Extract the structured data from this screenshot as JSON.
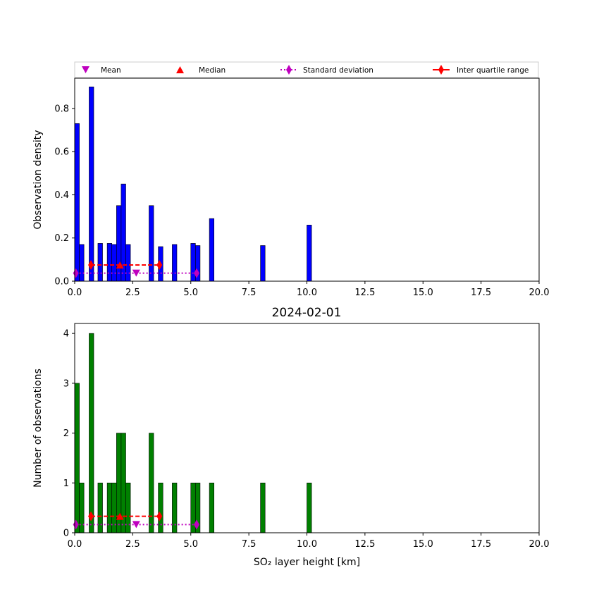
{
  "figure_title": "2024-02-01",
  "legend": {
    "mean": "Mean",
    "median": "Median",
    "std": "Standard deviation",
    "iqr": "Inter quartile range"
  },
  "colors": {
    "top_bar": "#0000ff",
    "bottom_bar": "#008000",
    "mean_marker": "#bf00bf",
    "median_marker": "#ff0000",
    "std_line": "#bf00bf",
    "iqr_line": "#ff0000"
  },
  "chart_data": [
    {
      "type": "bar",
      "panel": "top",
      "ylabel": "Observation density",
      "xlabel": "",
      "xlim": [
        0,
        20
      ],
      "ylim": [
        0,
        0.94
      ],
      "xticks": [
        "0.0",
        "2.5",
        "5.0",
        "7.5",
        "10.0",
        "12.5",
        "15.0",
        "17.5",
        "20.0"
      ],
      "xtick_values": [
        0,
        2.5,
        5,
        7.5,
        10,
        12.5,
        15,
        17.5,
        20
      ],
      "yticks": [
        "0.0",
        "0.2",
        "0.4",
        "0.6",
        "0.8"
      ],
      "ytick_values": [
        0,
        0.2,
        0.4,
        0.6,
        0.8
      ],
      "bar_width": 0.2,
      "bars": [
        {
          "x": 0.0,
          "value": 0.73
        },
        {
          "x": 0.2,
          "value": 0.17
        },
        {
          "x": 0.62,
          "value": 0.9
        },
        {
          "x": 1.0,
          "value": 0.175
        },
        {
          "x": 1.4,
          "value": 0.175
        },
        {
          "x": 1.6,
          "value": 0.17
        },
        {
          "x": 1.8,
          "value": 0.35
        },
        {
          "x": 2.0,
          "value": 0.45
        },
        {
          "x": 2.2,
          "value": 0.17
        },
        {
          "x": 3.2,
          "value": 0.35
        },
        {
          "x": 3.6,
          "value": 0.16
        },
        {
          "x": 4.2,
          "value": 0.17
        },
        {
          "x": 5.0,
          "value": 0.175
        },
        {
          "x": 5.2,
          "value": 0.165
        },
        {
          "x": 5.8,
          "value": 0.29
        },
        {
          "x": 8.0,
          "value": 0.165
        },
        {
          "x": 10.0,
          "value": 0.26
        }
      ],
      "stats_y": {
        "iqr": 0.075,
        "std": 0.037
      },
      "mean": 2.65,
      "median": 1.95,
      "std_range": [
        0.05,
        5.25
      ],
      "iqr_range": [
        0.7,
        3.65
      ]
    },
    {
      "type": "bar",
      "panel": "bottom",
      "ylabel": "Number of observations",
      "xlabel": "SO₂ layer height [km]",
      "xlim": [
        0,
        20
      ],
      "ylim": [
        0,
        4.2
      ],
      "xticks": [
        "0.0",
        "2.5",
        "5.0",
        "7.5",
        "10.0",
        "12.5",
        "15.0",
        "17.5",
        "20.0"
      ],
      "xtick_values": [
        0,
        2.5,
        5,
        7.5,
        10,
        12.5,
        15,
        17.5,
        20
      ],
      "yticks": [
        "0",
        "1",
        "2",
        "3",
        "4"
      ],
      "ytick_values": [
        0,
        1,
        2,
        3,
        4
      ],
      "bar_width": 0.2,
      "bars": [
        {
          "x": 0.0,
          "value": 3
        },
        {
          "x": 0.2,
          "value": 1
        },
        {
          "x": 0.62,
          "value": 4
        },
        {
          "x": 1.0,
          "value": 1
        },
        {
          "x": 1.4,
          "value": 1
        },
        {
          "x": 1.6,
          "value": 1
        },
        {
          "x": 1.8,
          "value": 2
        },
        {
          "x": 2.0,
          "value": 2
        },
        {
          "x": 2.2,
          "value": 1
        },
        {
          "x": 3.2,
          "value": 2
        },
        {
          "x": 3.6,
          "value": 1
        },
        {
          "x": 4.2,
          "value": 1
        },
        {
          "x": 5.0,
          "value": 1
        },
        {
          "x": 5.2,
          "value": 1
        },
        {
          "x": 5.8,
          "value": 1
        },
        {
          "x": 8.0,
          "value": 1
        },
        {
          "x": 10.0,
          "value": 1
        }
      ],
      "stats_y": {
        "iqr": 0.33,
        "std": 0.165
      },
      "mean": 2.65,
      "median": 1.95,
      "std_range": [
        0.05,
        5.25
      ],
      "iqr_range": [
        0.7,
        3.65
      ]
    }
  ]
}
